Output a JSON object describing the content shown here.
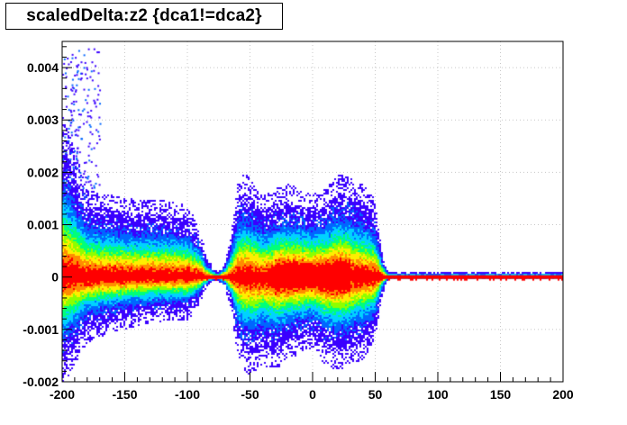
{
  "chart_data": {
    "type": "heatmap",
    "title": "scaledDelta:z2 {dca1!=dca2}",
    "xlabel": "",
    "ylabel": "",
    "xlim": [
      -200,
      200
    ],
    "ylim": [
      -0.002,
      0.0045
    ],
    "grid": true,
    "x_ticks": [
      -200,
      -150,
      -100,
      -50,
      0,
      50,
      100,
      150,
      200
    ],
    "x_tick_labels": [
      "-200",
      "-150",
      "-100",
      "-50",
      "0",
      "50",
      "100",
      "150",
      "200"
    ],
    "y_ticks": [
      -0.002,
      -0.001,
      0,
      0.001,
      0.002,
      0.003,
      0.004
    ],
    "y_tick_labels": [
      "-0.002",
      "-0.001",
      "0",
      "0.001",
      "0.002",
      "0.003",
      "0.004"
    ],
    "colormap": [
      "#3a00ff",
      "#0066ff",
      "#00d2ff",
      "#00ff7a",
      "#8cff00",
      "#ffee00",
      "#ff8c00",
      "#ff0000"
    ],
    "density_profile": {
      "x": [
        -200,
        -180,
        -160,
        -140,
        -120,
        -100,
        -90,
        -85,
        -80,
        -75,
        -70,
        -65,
        -60,
        -55,
        -50,
        -40,
        -30,
        -20,
        -10,
        0,
        10,
        20,
        30,
        40,
        50,
        55,
        60,
        80,
        100,
        150,
        200
      ],
      "upper_extent": [
        0.003,
        0.0016,
        0.0015,
        0.0014,
        0.0014,
        0.0013,
        0.0009,
        0.0004,
        0.0002,
        0.0001,
        0.0003,
        0.0008,
        0.0017,
        0.0019,
        0.0018,
        0.0015,
        0.0016,
        0.0017,
        0.0016,
        0.0015,
        0.0016,
        0.0019,
        0.0018,
        0.0017,
        0.0014,
        0.0005,
        0.0001,
        0.0001,
        0.0001,
        0.0001,
        0.0001
      ],
      "lower_extent": [
        -0.002,
        -0.0012,
        -0.001,
        -0.0009,
        -0.0008,
        -0.0008,
        -0.0005,
        -0.0002,
        -0.0001,
        -0.0001,
        -0.0002,
        -0.0006,
        -0.0014,
        -0.0017,
        -0.0018,
        -0.0016,
        -0.0017,
        -0.0015,
        -0.0014,
        -0.0013,
        -0.0016,
        -0.0017,
        -0.0016,
        -0.0015,
        -0.0012,
        -0.0004,
        -5e-05,
        -5e-05,
        -5e-05,
        -5e-05,
        -5e-05
      ]
    }
  }
}
